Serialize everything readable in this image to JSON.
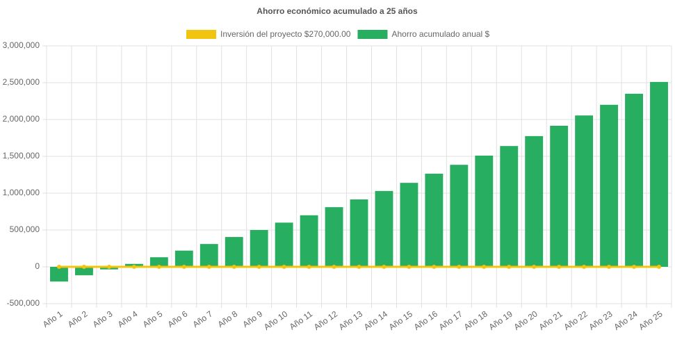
{
  "chart_data": {
    "type": "bar",
    "title": "Ahorro económico acumulado a 25 años",
    "categories": [
      "Año 1",
      "Año 2",
      "Año 3",
      "Año 4",
      "Año 5",
      "Año 6",
      "Año 7",
      "Año 8",
      "Año 9",
      "Año 10",
      "Año 11",
      "Año 12",
      "Año 13",
      "Año 14",
      "Año 15",
      "Año 16",
      "Año 17",
      "Año 18",
      "Año 19",
      "Año 20",
      "Año 21",
      "Año 22",
      "Año 23",
      "Año 24",
      "Año 25"
    ],
    "series": [
      {
        "name": "Inversión del proyecto $270,000.00",
        "type": "line",
        "color": "#f1c40f",
        "values": [
          0,
          0,
          0,
          0,
          0,
          0,
          0,
          0,
          0,
          0,
          0,
          0,
          0,
          0,
          0,
          0,
          0,
          0,
          0,
          0,
          0,
          0,
          0,
          0,
          0
        ]
      },
      {
        "name": "Ahorro acumulado anual $",
        "type": "bar",
        "color": "#27ae60",
        "values": [
          -200000,
          -115000,
          -35000,
          40000,
          130000,
          220000,
          310000,
          405000,
          500000,
          600000,
          700000,
          810000,
          915000,
          1030000,
          1140000,
          1265000,
          1385000,
          1510000,
          1640000,
          1775000,
          1915000,
          2055000,
          2200000,
          2350000,
          2510000
        ]
      }
    ],
    "ylim": [
      -500000,
      3000000
    ],
    "yticks": [
      {
        "value": -500000,
        "label": "-500,000"
      },
      0,
      {
        "value": 500000,
        "label": "500,000"
      },
      {
        "value": 1000000,
        "label": "1,000,000"
      },
      {
        "value": 1500000,
        "label": "1,500,000"
      },
      {
        "value": 2000000,
        "label": "2,000,000"
      },
      {
        "value": 2500000,
        "label": "2,500,000"
      },
      {
        "value": 3000000,
        "label": "3,000,000"
      }
    ],
    "grid": true
  }
}
